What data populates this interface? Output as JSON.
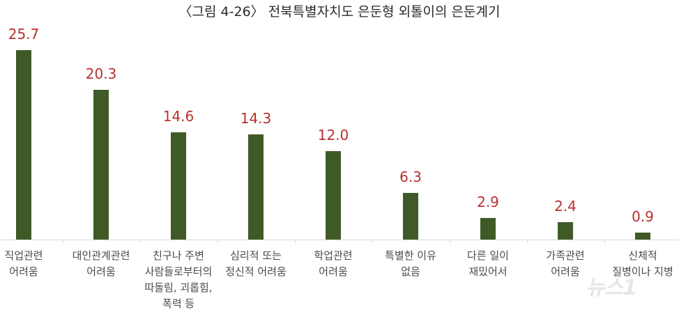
{
  "title": "〈그림 4-26〉 전북특별자치도 은둔형 외톨이의 은둔계기",
  "watermark": "뉴스1",
  "chart_data": {
    "type": "bar",
    "title": "〈그림 4-26〉 전북특별자치도 은둔형 외톨이의 은둔계기",
    "xlabel": "",
    "ylabel": "",
    "ylim": [
      0,
      27
    ],
    "grid": false,
    "legend": "none",
    "bar_color": "#3f5a27",
    "label_color": "#b8302e",
    "categories": [
      "직업관련 어려움",
      "대인관계관련 어려움",
      "친구나 주변 사람들로부터의 따돌림, 괴롭힘, 폭력 등",
      "심리적 또는 정신적 어려움",
      "학업관련 어려움",
      "특별한 이유 없음",
      "다른 일이 재밌어서",
      "가족관련 어려움",
      "신체적 질병이나 지병"
    ],
    "values": [
      25.7,
      20.3,
      14.6,
      14.3,
      12.0,
      6.3,
      2.9,
      2.4,
      0.9
    ],
    "value_labels": [
      "25.7",
      "20.3",
      "14.6",
      "14.3",
      "12.0",
      "6.3",
      "2.9",
      "2.4",
      "0.9"
    ],
    "category_lines": [
      [
        "직업관련",
        "어려움"
      ],
      [
        "대인관계관련",
        "어려움"
      ],
      [
        "친구나 주변",
        "사람들로부터의",
        "따돌림, 괴롭힘,",
        "폭력 등"
      ],
      [
        "심리적 또는",
        "정신적 어려움"
      ],
      [
        "학업관련",
        "어려움"
      ],
      [
        "특별한 이유",
        "없음"
      ],
      [
        "다른 일이",
        "재밌어서"
      ],
      [
        "가족관련",
        "어려움"
      ],
      [
        "신체적",
        "질병이나 지병"
      ]
    ]
  }
}
